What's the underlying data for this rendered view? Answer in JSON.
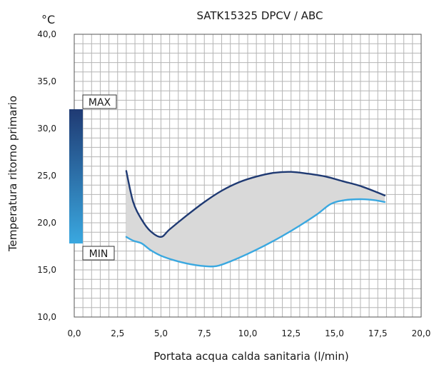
{
  "chart_data": {
    "type": "area",
    "title": "SATK15325 DPCV / ABC",
    "xlabel": "Portata acqua calda sanitaria (l/min)",
    "ylabel": "Temperatura ritorno primario",
    "yunit": "°C",
    "xlim": [
      0,
      20
    ],
    "ylim": [
      10,
      40
    ],
    "xticks": [
      "0,0",
      "2,5",
      "5,0",
      "7,5",
      "10,0",
      "12,5",
      "15,0",
      "17,5",
      "20,0"
    ],
    "yticks": [
      "10,0",
      "15,0",
      "20,0",
      "25,0",
      "30,0",
      "35,0",
      "40,0"
    ],
    "grid": true,
    "series": [
      {
        "name": "MAX",
        "color": "#1f3a73",
        "x": [
          3.0,
          3.4,
          3.9,
          4.4,
          5.0,
          5.5,
          6.5,
          7.5,
          8.5,
          9.5,
          10.5,
          11.5,
          12.5,
          13.5,
          14.5,
          15.5,
          16.5,
          17.5,
          17.9
        ],
        "y": [
          25.5,
          22.2,
          20.3,
          19.1,
          18.5,
          19.3,
          20.8,
          22.2,
          23.4,
          24.3,
          24.9,
          25.3,
          25.4,
          25.2,
          24.9,
          24.4,
          23.9,
          23.2,
          22.9
        ]
      },
      {
        "name": "MIN",
        "color": "#3aa8e0",
        "x": [
          3.0,
          3.4,
          3.9,
          4.4,
          5.0,
          5.8,
          6.7,
          7.5,
          8.2,
          9.0,
          10.0,
          11.0,
          12.0,
          13.0,
          14.0,
          14.8,
          15.6,
          16.5,
          17.3,
          17.9
        ],
        "y": [
          18.5,
          18.1,
          17.8,
          17.1,
          16.5,
          16.0,
          15.6,
          15.4,
          15.4,
          15.9,
          16.7,
          17.6,
          18.6,
          19.7,
          20.9,
          22.0,
          22.4,
          22.5,
          22.4,
          22.2
        ]
      }
    ],
    "legend": {
      "type": "gradient-bar",
      "placement": "left",
      "max_label": "MAX",
      "min_label": "MIN",
      "color_top": "#1f3a73",
      "color_bottom": "#3aa8e0"
    },
    "fill_color": "#d9d9d9"
  }
}
